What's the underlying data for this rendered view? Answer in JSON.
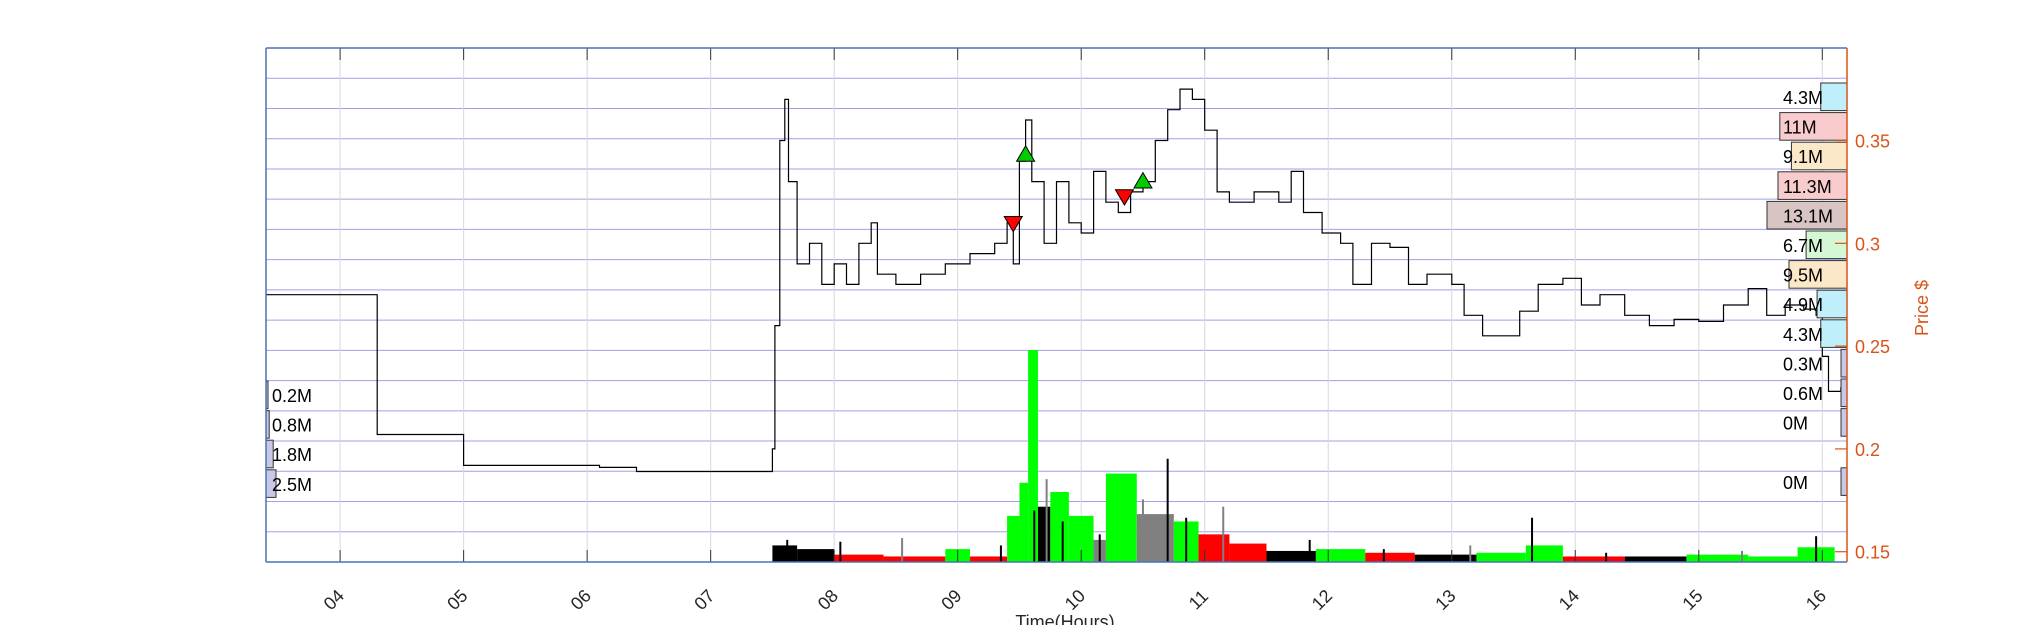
{
  "chart_data": {
    "type": "line",
    "xlabel": "Time(Hours)",
    "ylabel": "Price $",
    "x_ticks": [
      "04",
      "05",
      "06",
      "07",
      "08",
      "09",
      "10",
      "11",
      "12",
      "13",
      "14",
      "15",
      "16"
    ],
    "xlim": [
      3.4,
      16.2
    ],
    "ylim": [
      0.145,
      0.395
    ],
    "y_ticks": [
      "0.15",
      "0.2",
      "0.25",
      "0.3",
      "0.35"
    ],
    "y_tick_values": [
      0.15,
      0.2,
      0.25,
      0.3,
      0.35
    ],
    "grid": true,
    "series": [
      {
        "values": [
          [
            3.4,
            0.275
          ],
          [
            4.3,
            0.275
          ],
          [
            4.3,
            0.207
          ],
          [
            5.0,
            0.207
          ],
          [
            5.0,
            0.192
          ],
          [
            6.1,
            0.191
          ],
          [
            6.4,
            0.189
          ],
          [
            7.5,
            0.189
          ],
          [
            7.5,
            0.2
          ],
          [
            7.52,
            0.26
          ],
          [
            7.56,
            0.35
          ],
          [
            7.6,
            0.37
          ],
          [
            7.63,
            0.33
          ],
          [
            7.7,
            0.29
          ],
          [
            7.8,
            0.3
          ],
          [
            7.9,
            0.28
          ],
          [
            8.0,
            0.29
          ],
          [
            8.1,
            0.28
          ],
          [
            8.2,
            0.3
          ],
          [
            8.3,
            0.31
          ],
          [
            8.35,
            0.285
          ],
          [
            8.5,
            0.28
          ],
          [
            8.7,
            0.285
          ],
          [
            8.9,
            0.29
          ],
          [
            9.1,
            0.295
          ],
          [
            9.3,
            0.3
          ],
          [
            9.4,
            0.31
          ],
          [
            9.45,
            0.29
          ],
          [
            9.5,
            0.34
          ],
          [
            9.55,
            0.36
          ],
          [
            9.6,
            0.33
          ],
          [
            9.7,
            0.3
          ],
          [
            9.8,
            0.33
          ],
          [
            9.9,
            0.31
          ],
          [
            10.0,
            0.305
          ],
          [
            10.1,
            0.335
          ],
          [
            10.2,
            0.32
          ],
          [
            10.3,
            0.315
          ],
          [
            10.4,
            0.325
          ],
          [
            10.5,
            0.33
          ],
          [
            10.6,
            0.35
          ],
          [
            10.7,
            0.365
          ],
          [
            10.8,
            0.375
          ],
          [
            10.9,
            0.37
          ],
          [
            11.0,
            0.355
          ],
          [
            11.1,
            0.325
          ],
          [
            11.2,
            0.32
          ],
          [
            11.4,
            0.325
          ],
          [
            11.6,
            0.32
          ],
          [
            11.7,
            0.335
          ],
          [
            11.8,
            0.315
          ],
          [
            11.95,
            0.305
          ],
          [
            12.1,
            0.3
          ],
          [
            12.2,
            0.28
          ],
          [
            12.35,
            0.3
          ],
          [
            12.5,
            0.298
          ],
          [
            12.65,
            0.28
          ],
          [
            12.8,
            0.285
          ],
          [
            13.0,
            0.28
          ],
          [
            13.1,
            0.265
          ],
          [
            13.25,
            0.255
          ],
          [
            13.4,
            0.255
          ],
          [
            13.55,
            0.267
          ],
          [
            13.7,
            0.28
          ],
          [
            13.9,
            0.283
          ],
          [
            14.05,
            0.27
          ],
          [
            14.2,
            0.275
          ],
          [
            14.4,
            0.265
          ],
          [
            14.6,
            0.26
          ],
          [
            14.8,
            0.263
          ],
          [
            15.0,
            0.262
          ],
          [
            15.2,
            0.27
          ],
          [
            15.4,
            0.278
          ],
          [
            15.55,
            0.265
          ],
          [
            15.7,
            0.27
          ],
          [
            15.85,
            0.268
          ],
          [
            15.95,
            0.265
          ],
          [
            16.0,
            0.245
          ],
          [
            16.05,
            0.228
          ],
          [
            16.15,
            0.23
          ]
        ]
      }
    ],
    "volume_bars": {
      "bars": [
        {
          "t0": 7.5,
          "t1": 7.7,
          "vol": 9,
          "color": "#000000"
        },
        {
          "t0": 7.7,
          "t1": 8.0,
          "vol": 7,
          "color": "#000000"
        },
        {
          "t0": 8.0,
          "t1": 8.4,
          "vol": 4,
          "color": "#ff0000"
        },
        {
          "t0": 8.4,
          "t1": 8.9,
          "vol": 3,
          "color": "#ff0000"
        },
        {
          "t0": 8.9,
          "t1": 9.1,
          "vol": 7,
          "color": "#00ff00"
        },
        {
          "t0": 9.1,
          "t1": 9.4,
          "vol": 3,
          "color": "#ff0000"
        },
        {
          "t0": 9.4,
          "t1": 9.5,
          "vol": 25,
          "color": "#00ff00"
        },
        {
          "t0": 9.5,
          "t1": 9.57,
          "vol": 43,
          "color": "#00ff00"
        },
        {
          "t0": 9.57,
          "t1": 9.65,
          "vol": 115,
          "color": "#00ff00"
        },
        {
          "t0": 9.65,
          "t1": 9.75,
          "vol": 30,
          "color": "#000000"
        },
        {
          "t0": 9.75,
          "t1": 9.9,
          "vol": 38,
          "color": "#00ff00"
        },
        {
          "t0": 9.9,
          "t1": 10.1,
          "vol": 25,
          "color": "#00ff00"
        },
        {
          "t0": 10.1,
          "t1": 10.2,
          "vol": 12,
          "color": "#808080"
        },
        {
          "t0": 10.2,
          "t1": 10.45,
          "vol": 48,
          "color": "#00ff00"
        },
        {
          "t0": 10.45,
          "t1": 10.75,
          "vol": 26,
          "color": "#808080"
        },
        {
          "t0": 10.75,
          "t1": 10.95,
          "vol": 22,
          "color": "#00ff00"
        },
        {
          "t0": 10.95,
          "t1": 11.2,
          "vol": 15,
          "color": "#ff0000"
        },
        {
          "t0": 11.2,
          "t1": 11.5,
          "vol": 10,
          "color": "#ff0000"
        },
        {
          "t0": 11.5,
          "t1": 11.9,
          "vol": 6,
          "color": "#000000"
        },
        {
          "t0": 11.9,
          "t1": 12.3,
          "vol": 7,
          "color": "#00ff00"
        },
        {
          "t0": 12.3,
          "t1": 12.7,
          "vol": 5,
          "color": "#ff0000"
        },
        {
          "t0": 12.7,
          "t1": 13.2,
          "vol": 4,
          "color": "#000000"
        },
        {
          "t0": 13.2,
          "t1": 13.6,
          "vol": 5,
          "color": "#00ff00"
        },
        {
          "t0": 13.6,
          "t1": 13.9,
          "vol": 9,
          "color": "#00ff00"
        },
        {
          "t0": 13.9,
          "t1": 14.4,
          "vol": 3,
          "color": "#ff0000"
        },
        {
          "t0": 14.4,
          "t1": 14.9,
          "vol": 3,
          "color": "#000000"
        },
        {
          "t0": 14.9,
          "t1": 15.4,
          "vol": 4,
          "color": "#00ff00"
        },
        {
          "t0": 15.4,
          "t1": 15.8,
          "vol": 3,
          "color": "#00ff00"
        },
        {
          "t0": 15.8,
          "t1": 16.1,
          "vol": 8,
          "color": "#00ff00"
        }
      ],
      "spikes": [
        {
          "t": 7.62,
          "vol": 12
        },
        {
          "t": 8.05,
          "vol": 11
        },
        {
          "t": 8.55,
          "vol": 13
        },
        {
          "t": 9.35,
          "vol": 9
        },
        {
          "t": 9.62,
          "vol": 28
        },
        {
          "t": 9.72,
          "vol": 45
        },
        {
          "t": 9.85,
          "vol": 22
        },
        {
          "t": 10.15,
          "vol": 15
        },
        {
          "t": 10.5,
          "vol": 34
        },
        {
          "t": 10.7,
          "vol": 56
        },
        {
          "t": 10.85,
          "vol": 24
        },
        {
          "t": 11.15,
          "vol": 30
        },
        {
          "t": 11.85,
          "vol": 12
        },
        {
          "t": 12.45,
          "vol": 7
        },
        {
          "t": 13.15,
          "vol": 9
        },
        {
          "t": 13.65,
          "vol": 24
        },
        {
          "t": 14.25,
          "vol": 5
        },
        {
          "t": 15.35,
          "vol": 6
        },
        {
          "t": 15.95,
          "vol": 14
        }
      ],
      "max_vol": 140
    },
    "trade_markers": [
      {
        "t": 9.45,
        "price": 0.31,
        "kind": "sell"
      },
      {
        "t": 9.55,
        "price": 0.343,
        "kind": "buy"
      },
      {
        "t": 10.35,
        "price": 0.323,
        "kind": "sell"
      },
      {
        "t": 10.5,
        "price": 0.33,
        "kind": "buy"
      }
    ],
    "volume_profile_right": [
      {
        "label": "4.3M",
        "vol": 4.3,
        "color": "#bfeffa"
      },
      {
        "label": "11M",
        "vol": 11,
        "color": "#f8cccc"
      },
      {
        "label": "9.1M",
        "vol": 9.1,
        "color": "#fbe8c8"
      },
      {
        "label": "11.3M",
        "vol": 11.3,
        "color": "#f8cccc"
      },
      {
        "label": "13.1M",
        "vol": 13.1,
        "color": "#d9c4c4"
      },
      {
        "label": "6.7M",
        "vol": 6.7,
        "color": "#d4f7d4"
      },
      {
        "label": "9.5M",
        "vol": 9.5,
        "color": "#fbe8c8"
      },
      {
        "label": "4.9M",
        "vol": 4.9,
        "color": "#bfeffa"
      },
      {
        "label": "4.3M",
        "vol": 4.3,
        "color": "#bfeffa"
      },
      {
        "label": "0.3M",
        "vol": 0.3,
        "color": "#c8c8e6"
      },
      {
        "label": "0.6M",
        "vol": 0.6,
        "color": "#c8c8e6"
      },
      {
        "label": "0M",
        "vol": 0.02,
        "color": "#c8c8e6"
      },
      {
        "label": "",
        "vol": 0,
        "color": "#c8c8e6"
      },
      {
        "label": "0M",
        "vol": 0.02,
        "color": "#c8c8e6"
      }
    ],
    "volume_profile_left": [
      {
        "label": "0.2M",
        "vol": 0.2,
        "color": "#c8c8e6"
      },
      {
        "label": "0.8M",
        "vol": 0.8,
        "color": "#c8c8e6"
      },
      {
        "label": "1.8M",
        "vol": 1.8,
        "color": "#c8c8e6"
      },
      {
        "label": "2.5M",
        "vol": 2.5,
        "color": "#c8c8e6"
      }
    ],
    "colors": {
      "axis": "#4575b4",
      "grid": "#a0a0e8",
      "price_axis": "#d95319",
      "price_line": "#000000",
      "buy_marker": "#00cc00",
      "sell_marker": "#ff0000"
    }
  }
}
